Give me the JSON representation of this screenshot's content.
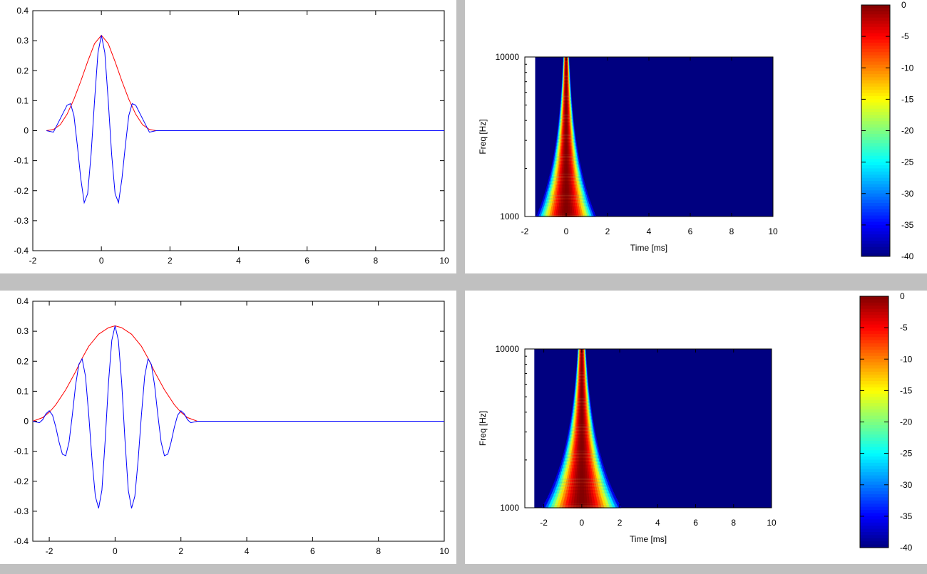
{
  "chart_data": [
    {
      "type": "line",
      "title": "",
      "xlabel": "",
      "ylabel": "",
      "xlim": [
        -2,
        10
      ],
      "ylim": [
        -0.4,
        0.4
      ],
      "x_ticks": [
        -2,
        0,
        2,
        4,
        6,
        8,
        10
      ],
      "y_ticks": [
        -0.4,
        -0.3,
        -0.2,
        -0.1,
        0,
        0.1,
        0.2,
        0.3,
        0.4
      ],
      "y_tick_labels": [
        "-0.4",
        "-0.3",
        "-0.2",
        "-0.1",
        "0",
        "0.1",
        "0.2",
        "0.3",
        "0.4"
      ],
      "grid": false,
      "legend": "none",
      "series": [
        {
          "color": "#ff0000",
          "x": [
            -1.6,
            -1.4,
            -1.2,
            -1.0,
            -0.8,
            -0.6,
            -0.4,
            -0.2,
            0,
            0.2,
            0.4,
            0.6,
            0.8,
            1.0,
            1.2,
            1.4,
            1.6,
            2,
            4,
            6,
            8,
            10
          ],
          "y": [
            0.0,
            0.004,
            0.02,
            0.055,
            0.105,
            0.165,
            0.23,
            0.29,
            0.318,
            0.29,
            0.23,
            0.165,
            0.105,
            0.055,
            0.02,
            0.004,
            0.0,
            0,
            0,
            0,
            0,
            0
          ]
        },
        {
          "color": "#0000ff",
          "x": [
            -1.6,
            -1.4,
            -1.2,
            -1.0,
            -0.9,
            -0.8,
            -0.7,
            -0.6,
            -0.5,
            -0.4,
            -0.3,
            -0.2,
            -0.1,
            0,
            0.1,
            0.2,
            0.3,
            0.4,
            0.5,
            0.6,
            0.7,
            0.8,
            0.9,
            1.0,
            1.2,
            1.4,
            1.6,
            2,
            4,
            6,
            8,
            10
          ],
          "y": [
            0.0,
            -0.005,
            0.04,
            0.085,
            0.09,
            0.05,
            -0.05,
            -0.16,
            -0.24,
            -0.21,
            -0.08,
            0.1,
            0.26,
            0.318,
            0.26,
            0.1,
            -0.08,
            -0.21,
            -0.24,
            -0.16,
            -0.05,
            0.05,
            0.09,
            0.085,
            0.04,
            -0.005,
            0.0,
            0,
            0,
            0,
            0,
            0
          ]
        }
      ]
    },
    {
      "type": "heatmap",
      "title": "",
      "xlabel": "Time [ms]",
      "ylabel": "Freq [Hz]",
      "xlim": [
        -2,
        10
      ],
      "ylim": [
        1000,
        10000
      ],
      "yscale": "log",
      "x_ticks": [
        -2,
        0,
        2,
        4,
        6,
        8,
        10
      ],
      "y_ticks": [
        1000,
        10000
      ],
      "y_tick_labels": [
        "1000",
        "10000"
      ],
      "data_xlim": [
        -1.5,
        10
      ],
      "ridge": {
        "center_ms": 0,
        "halfwidth_ms_at_1000Hz": 1.45,
        "halfwidth_ms_at_10000Hz": 0.15
      },
      "colorbar": {
        "min": -40,
        "max": 0,
        "ticks": [
          0,
          -5,
          -10,
          -15,
          -20,
          -25,
          -30,
          -35,
          -40
        ],
        "tick_labels": [
          "0",
          "-5",
          "-10",
          "-15",
          "-20",
          "-25",
          "-30",
          "-35",
          "-40"
        ],
        "colormap": "jet"
      }
    },
    {
      "type": "line",
      "title": "",
      "xlabel": "",
      "ylabel": "",
      "xlim": [
        -2.5,
        10
      ],
      "ylim": [
        -0.4,
        0.4
      ],
      "x_ticks": [
        -2,
        0,
        2,
        4,
        6,
        8,
        10
      ],
      "y_ticks": [
        -0.4,
        -0.3,
        -0.2,
        -0.1,
        0,
        0.1,
        0.2,
        0.3,
        0.4
      ],
      "y_tick_labels": [
        "-0.4",
        "-0.3",
        "-0.2",
        "-0.1",
        "0",
        "0.1",
        "0.2",
        "0.3",
        "0.4"
      ],
      "grid": false,
      "legend": "none",
      "series": [
        {
          "color": "#ff0000",
          "x": [
            -2.5,
            -2.2,
            -2.0,
            -1.8,
            -1.5,
            -1.2,
            -1.0,
            -0.8,
            -0.5,
            -0.2,
            0,
            0.2,
            0.5,
            0.8,
            1.0,
            1.2,
            1.5,
            1.8,
            2.0,
            2.2,
            2.5,
            4,
            6,
            8,
            10
          ],
          "y": [
            0.0,
            0.012,
            0.03,
            0.055,
            0.105,
            0.165,
            0.21,
            0.25,
            0.29,
            0.312,
            0.318,
            0.312,
            0.29,
            0.25,
            0.21,
            0.165,
            0.105,
            0.055,
            0.03,
            0.012,
            0.0,
            0,
            0,
            0,
            0
          ]
        },
        {
          "color": "#0000ff",
          "x": [
            -2.5,
            -2.3,
            -2.2,
            -2.1,
            -2.0,
            -1.9,
            -1.8,
            -1.7,
            -1.6,
            -1.5,
            -1.4,
            -1.3,
            -1.2,
            -1.1,
            -1.0,
            -0.9,
            -0.8,
            -0.7,
            -0.6,
            -0.5,
            -0.4,
            -0.3,
            -0.2,
            -0.1,
            0,
            0.1,
            0.2,
            0.3,
            0.4,
            0.5,
            0.6,
            0.7,
            0.8,
            0.9,
            1.0,
            1.1,
            1.2,
            1.3,
            1.4,
            1.5,
            1.6,
            1.7,
            1.8,
            1.9,
            2.0,
            2.1,
            2.2,
            2.3,
            2.5,
            4,
            6,
            8,
            10
          ],
          "y": [
            0.0,
            -0.005,
            0.005,
            0.025,
            0.035,
            0.02,
            -0.02,
            -0.07,
            -0.11,
            -0.115,
            -0.07,
            0.02,
            0.12,
            0.19,
            0.208,
            0.15,
            0.02,
            -0.13,
            -0.25,
            -0.29,
            -0.23,
            -0.06,
            0.13,
            0.27,
            0.318,
            0.27,
            0.13,
            -0.06,
            -0.23,
            -0.29,
            -0.25,
            -0.13,
            0.02,
            0.15,
            0.208,
            0.19,
            0.12,
            0.02,
            -0.07,
            -0.115,
            -0.11,
            -0.07,
            -0.02,
            0.02,
            0.035,
            0.025,
            0.005,
            -0.005,
            0.0,
            0,
            0,
            0,
            0
          ]
        }
      ]
    },
    {
      "type": "heatmap",
      "title": "",
      "xlabel": "Time [ms]",
      "ylabel": "Freq [Hz]",
      "xlim": [
        -3,
        10
      ],
      "ylim": [
        1000,
        10000
      ],
      "yscale": "log",
      "x_ticks": [
        -2,
        0,
        2,
        4,
        6,
        8,
        10
      ],
      "y_ticks": [
        1000,
        10000
      ],
      "y_tick_labels": [
        "1000",
        "10000"
      ],
      "data_xlim": [
        -2.5,
        10
      ],
      "ridge": {
        "center_ms": 0,
        "halfwidth_ms_at_1000Hz": 2.1,
        "halfwidth_ms_at_10000Hz": 0.22
      },
      "colorbar": {
        "min": -40,
        "max": 0,
        "ticks": [
          0,
          -5,
          -10,
          -15,
          -20,
          -25,
          -30,
          -35,
          -40
        ],
        "tick_labels": [
          "0",
          "-5",
          "-10",
          "-15",
          "-20",
          "-25",
          "-30",
          "-35",
          "-40"
        ],
        "colormap": "jet"
      }
    }
  ]
}
